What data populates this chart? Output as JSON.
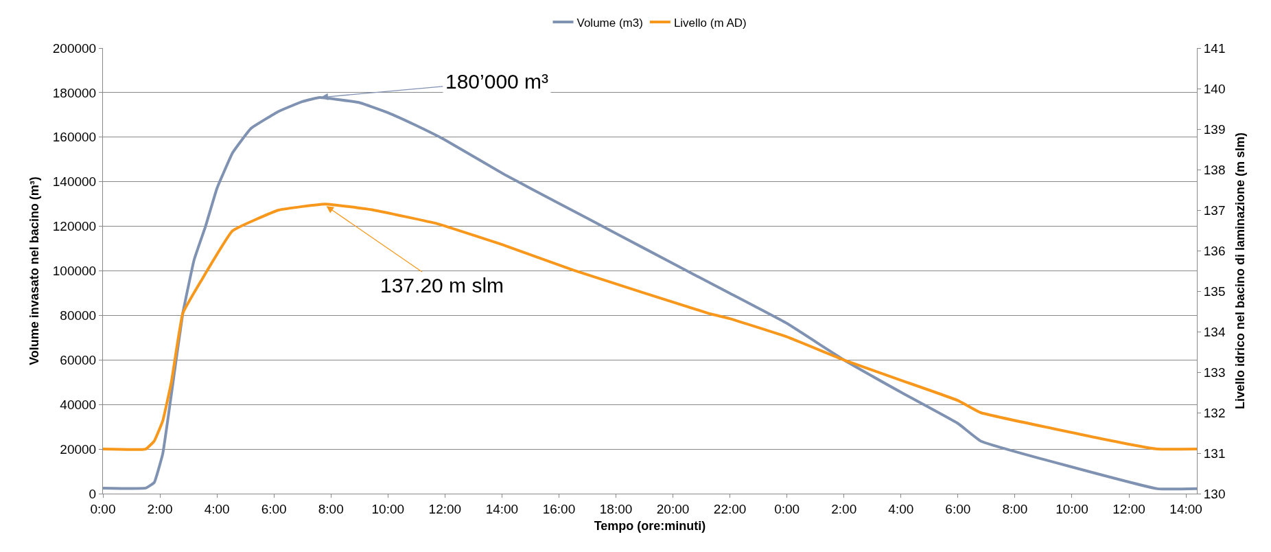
{
  "chart_data": {
    "type": "line",
    "xlabel": "Tempo (ore:minuti)",
    "ylabel": "Volume invasato nel bacino (m³)",
    "y2label": "Livello idrico nel bacino di laminazione (m slm)",
    "series": [
      {
        "name": "Volume (m3)",
        "color": "#8092b2",
        "x": [
          "2000-01-01T00:00",
          "2000-01-01T01:30",
          "2000-01-01T01:48",
          "2000-01-01T02:06",
          "2000-01-01T02:24",
          "2000-01-01T02:48",
          "2000-01-01T03:12",
          "2000-01-01T03:36",
          "2000-01-01T04:00",
          "2000-01-01T04:33",
          "2000-01-01T05:12",
          "2000-01-01T06:10",
          "2000-01-01T07:00",
          "2000-01-01T07:36",
          "2000-01-01T09:00",
          "2000-01-01T10:00",
          "2000-01-01T10:58",
          "2000-01-01T12:00",
          "2000-01-01T14:09",
          "2000-01-01T16:00",
          "2000-01-01T18:00",
          "2000-01-01T20:00",
          "2000-01-01T22:00",
          "2000-01-02T00:00",
          "2000-01-02T02:00",
          "2000-01-02T04:00",
          "2000-01-02T06:00",
          "2000-01-02T06:48",
          "2000-01-02T13:00",
          "2000-01-02T14:23"
        ],
        "values": [
          2500,
          2500,
          5000,
          18000,
          44500,
          80800,
          105000,
          120000,
          137000,
          153000,
          164000,
          171600,
          176000,
          177800,
          175500,
          171000,
          165400,
          158800,
          142800,
          130300,
          116800,
          103300,
          89900,
          76400,
          60000,
          45500,
          31500,
          23600,
          2200,
          2200
        ]
      },
      {
        "name": "Livello (m AD)",
        "color": "#f7981d",
        "axis": "y2",
        "x": [
          "2000-01-01T00:00",
          "2000-01-01T01:30",
          "2000-01-01T01:48",
          "2000-01-01T02:06",
          "2000-01-01T02:24",
          "2000-01-01T02:48",
          "2000-01-01T03:26",
          "2000-01-01T04:33",
          "2000-01-01T06:10",
          "2000-01-01T07:48",
          "2000-01-01T09:30",
          "2000-01-01T11:45",
          "2000-01-01T14:00",
          "2000-01-01T16:30",
          "2000-01-01T21:18",
          "2000-01-01T22:00",
          "2000-01-02T00:00",
          "2000-01-02T02:00",
          "2000-01-02T04:00",
          "2000-01-02T06:00",
          "2000-01-02T06:48",
          "2000-01-02T12:00",
          "2000-01-02T13:00",
          "2000-01-02T14:23"
        ],
        "values": [
          131.1,
          131.1,
          131.3,
          131.8,
          132.75,
          134.45,
          135.24,
          136.49,
          137.0,
          137.15,
          137.0,
          136.66,
          136.15,
          135.52,
          134.44,
          134.32,
          133.87,
          133.3,
          132.8,
          132.3,
          132.0,
          131.22,
          131.1,
          131.1
        ]
      }
    ],
    "xlim": [
      "2000-01-01T00:00",
      "2000-01-02T14:23"
    ],
    "xticks": [
      {
        "value": "2000-01-01T00:00",
        "label": "0:00"
      },
      {
        "value": "2000-01-01T02:00",
        "label": "2:00"
      },
      {
        "value": "2000-01-01T04:00",
        "label": "4:00"
      },
      {
        "value": "2000-01-01T06:00",
        "label": "6:00"
      },
      {
        "value": "2000-01-01T08:00",
        "label": "8:00"
      },
      {
        "value": "2000-01-01T10:00",
        "label": "10:00"
      },
      {
        "value": "2000-01-01T12:00",
        "label": "12:00"
      },
      {
        "value": "2000-01-01T14:00",
        "label": "14:00"
      },
      {
        "value": "2000-01-01T16:00",
        "label": "16:00"
      },
      {
        "value": "2000-01-01T18:00",
        "label": "18:00"
      },
      {
        "value": "2000-01-01T20:00",
        "label": "20:00"
      },
      {
        "value": "2000-01-01T22:00",
        "label": "22:00"
      },
      {
        "value": "2000-01-02T00:00",
        "label": "0:00"
      },
      {
        "value": "2000-01-02T02:00",
        "label": "2:00"
      },
      {
        "value": "2000-01-02T04:00",
        "label": "4:00"
      },
      {
        "value": "2000-01-02T06:00",
        "label": "6:00"
      },
      {
        "value": "2000-01-02T08:00",
        "label": "8:00"
      },
      {
        "value": "2000-01-02T10:00",
        "label": "10:00"
      },
      {
        "value": "2000-01-02T12:00",
        "label": "12:00"
      },
      {
        "value": "2000-01-02T14:00",
        "label": "14:00"
      }
    ],
    "ylim": [
      0,
      200000
    ],
    "yticks": [
      0,
      20000,
      40000,
      60000,
      80000,
      100000,
      120000,
      140000,
      160000,
      180000,
      200000
    ],
    "y2lim": [
      130,
      141
    ],
    "y2ticks": [
      130,
      131,
      132,
      133,
      134,
      135,
      136,
      137,
      138,
      139,
      140,
      141
    ],
    "annotations": [
      {
        "text": "180’000 m³",
        "x": "2000-01-01T07:36",
        "y": 177800
      },
      {
        "text": "137.20 m slm",
        "x": "2000-01-01T07:48",
        "y": 129400
      }
    ],
    "grid": "y",
    "legend": "top",
    "marker": "none",
    "line_style": "solid"
  }
}
